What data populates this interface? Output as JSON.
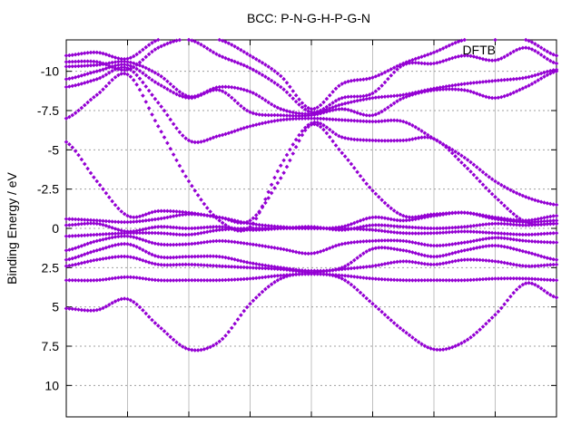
{
  "chart_data": {
    "type": "scatter",
    "title": "BCC: P-N-G-H-P-G-N",
    "ylabel": "Binding Energy / eV",
    "xlabel": "",
    "ylim": [
      12,
      -12
    ],
    "xlim": [
      0,
      8
    ],
    "y_ticks": [
      -10,
      -7.5,
      -5,
      -2.5,
      0,
      2.5,
      5,
      7.5,
      10
    ],
    "y_tick_labels": [
      "-10",
      "-7.5",
      "-5",
      "-2.5",
      "0",
      "2.5",
      "5",
      "7.5",
      "10"
    ],
    "x_gridlines": [
      1,
      2,
      3,
      4,
      5,
      6,
      7
    ],
    "grid": true,
    "legend": "top-right",
    "series": [
      {
        "name": "DFTB",
        "color": "#9400d3",
        "bands": [
          {
            "x": [
              0,
              0.5,
              1,
              1.5,
              2,
              2.5,
              3,
              3.5,
              4,
              4.5,
              5,
              5.5,
              6,
              6.5,
              7,
              7.5,
              8
            ],
            "y": [
              5.1,
              5.2,
              4.5,
              6.2,
              7.7,
              7.2,
              4.8,
              3.2,
              2.9,
              3.2,
              4.8,
              6.5,
              7.7,
              7.2,
              5.5,
              3.5,
              4.4
            ]
          },
          {
            "x": [
              0,
              0.5,
              1,
              1.5,
              2,
              2.5,
              3,
              3.5,
              4,
              4.5,
              5,
              5.5,
              6,
              6.5,
              7,
              7.5,
              8
            ],
            "y": [
              3.3,
              3.3,
              3.1,
              3.3,
              3.3,
              3.3,
              3.2,
              3.0,
              2.9,
              3.0,
              3.2,
              3.3,
              3.3,
              3.3,
              3.2,
              3.2,
              3.3
            ]
          },
          {
            "x": [
              0,
              0.5,
              1,
              1.5,
              2,
              2.5,
              3,
              3.5,
              4,
              4.5,
              5,
              5.5,
              6,
              6.5,
              7,
              7.5,
              8
            ],
            "y": [
              2.4,
              2.0,
              1.8,
              2.3,
              2.3,
              2.4,
              2.5,
              2.6,
              2.8,
              2.6,
              2.4,
              2.1,
              2.3,
              2.0,
              2.1,
              2.4,
              2.3
            ]
          },
          {
            "x": [
              0,
              0.5,
              1,
              1.5,
              2,
              2.5,
              3,
              3.5,
              4,
              4.5,
              5,
              5.5,
              6,
              6.5,
              7,
              7.5,
              8
            ],
            "y": [
              2.0,
              1.4,
              1.0,
              1.8,
              1.8,
              1.8,
              2.2,
              2.5,
              2.7,
              2.5,
              1.3,
              1.4,
              1.8,
              1.4,
              1.1,
              1.5,
              2.0
            ]
          },
          {
            "x": [
              0,
              0.5,
              1,
              1.5,
              2,
              2.5,
              3,
              3.5,
              4,
              4.5,
              5,
              5.5,
              6,
              6.5,
              7,
              7.5,
              8
            ],
            "y": [
              1.4,
              0.8,
              0.5,
              1.0,
              1.0,
              0.8,
              1.0,
              1.3,
              1.6,
              1.0,
              0.8,
              0.8,
              1.1,
              0.9,
              0.6,
              0.8,
              0.9
            ]
          },
          {
            "x": [
              0,
              0.5,
              1,
              1.5,
              2,
              2.5,
              3,
              3.5,
              4,
              4.5,
              5,
              5.5,
              6,
              6.5,
              7,
              7.5,
              8
            ],
            "y": [
              0.5,
              0.4,
              0.3,
              0.3,
              0.4,
              0.1,
              0.0,
              0.0,
              0.0,
              0.0,
              0.1,
              0.3,
              0.3,
              0.2,
              0.3,
              0.4,
              0.3
            ]
          },
          {
            "x": [
              0,
              0.5,
              1,
              1.5,
              2,
              2.5,
              3,
              3.5,
              4,
              4.5,
              5,
              5.5,
              6,
              6.5,
              7,
              7.5,
              8
            ],
            "y": [
              -0.2,
              -0.3,
              0.2,
              -0.1,
              0.0,
              -0.1,
              0.1,
              0.0,
              -0.1,
              0.1,
              -0.2,
              -0.1,
              0.0,
              -0.1,
              -0.3,
              -0.2,
              -0.3
            ]
          },
          {
            "x": [
              0,
              0.5,
              1,
              1.5,
              2,
              2.5,
              3,
              3.5,
              4,
              4.5,
              5,
              5.5,
              6,
              6.5,
              7,
              7.5,
              8
            ],
            "y": [
              -0.6,
              -0.5,
              -0.4,
              -0.6,
              -0.9,
              -0.7,
              -0.3,
              -0.1,
              0.0,
              -0.1,
              -0.7,
              -0.5,
              -0.8,
              -1.0,
              -0.6,
              -0.4,
              -0.5
            ]
          },
          {
            "x": [
              0,
              0.5,
              1,
              1.5,
              2,
              2.5,
              3,
              3.5,
              4,
              4.5,
              5,
              5.5,
              6,
              6.5,
              7,
              7.5,
              8
            ],
            "y": [
              -5.5,
              -3.0,
              -0.8,
              -1.1,
              -1.0,
              -0.7,
              -0.5,
              -3.2,
              -6.6,
              -4.8,
              -2.4,
              -0.8,
              -0.9,
              -1.0,
              -0.7,
              -0.5,
              -0.8
            ]
          },
          {
            "x": [
              0,
              0.5,
              1,
              1.5,
              2,
              2.5,
              3,
              3.5,
              4,
              4.5,
              5,
              5.5,
              6,
              6.5,
              7,
              7.5,
              8
            ],
            "y": [
              -7.0,
              -8.5,
              -9.8,
              -6.5,
              -3.0,
              -0.5,
              -0.1,
              -4.0,
              -6.7,
              -5.8,
              -5.6,
              -5.6,
              -5.7,
              -4.0,
              -2.0,
              -0.4,
              -0.3
            ]
          },
          {
            "x": [
              0,
              0.5,
              1,
              1.5,
              2,
              2.5,
              3,
              3.5,
              4,
              4.5,
              5,
              5.5,
              6,
              6.5,
              7,
              7.5,
              8
            ],
            "y": [
              -9.0,
              -9.5,
              -10.2,
              -8.0,
              -5.6,
              -5.9,
              -6.5,
              -6.9,
              -7.0,
              -6.9,
              -6.8,
              -6.8,
              -5.7,
              -4.5,
              -3.0,
              -2.0,
              -1.5
            ]
          },
          {
            "x": [
              0,
              0.5,
              1,
              1.5,
              2,
              2.5,
              3,
              3.5,
              4,
              4.5,
              5,
              5.5,
              6,
              6.5,
              7,
              7.5,
              8
            ],
            "y": [
              -9.5,
              -10.0,
              -10.4,
              -9.2,
              -8.3,
              -8.8,
              -7.4,
              -7.2,
              -7.2,
              -7.6,
              -7.2,
              -8.3,
              -8.8,
              -8.8,
              -8.3,
              -9.0,
              -10.0
            ]
          },
          {
            "x": [
              0,
              0.5,
              1,
              1.5,
              2,
              2.5,
              3,
              3.5,
              4,
              4.5,
              5,
              5.5,
              6,
              6.5,
              7,
              7.5,
              8
            ],
            "y": [
              -10.3,
              -10.4,
              -10.6,
              -9.8,
              -8.4,
              -9.0,
              -8.7,
              -7.6,
              -7.3,
              -7.9,
              -8.3,
              -8.5,
              -8.9,
              -9.2,
              -9.4,
              -9.6,
              -10.1
            ]
          },
          {
            "x": [
              0,
              0.5,
              1,
              1.5,
              2,
              2.5,
              3,
              3.5,
              4,
              4.5,
              5,
              5.5,
              6,
              6.5,
              7,
              7.5,
              8
            ],
            "y": [
              -10.6,
              -10.6,
              -10.1,
              -11.5,
              -12.0,
              -11.0,
              -10.2,
              -9.0,
              -7.4,
              -8.3,
              -8.6,
              -10.4,
              -10.5,
              -11.0,
              -10.7,
              -11.5,
              -10.5
            ]
          },
          {
            "x": [
              0,
              0.5,
              1,
              1.5,
              2,
              2.5,
              3,
              3.5,
              4,
              4.5,
              5,
              5.5,
              6,
              6.5,
              7,
              7.5,
              8
            ],
            "y": [
              -11.0,
              -11.2,
              -10.8,
              -12.0,
              -12.0,
              -12.0,
              -11.0,
              -9.7,
              -7.6,
              -9.2,
              -9.6,
              -10.5,
              -11.2,
              -12.0,
              -12.0,
              -12.0,
              -11.0
            ]
          }
        ]
      }
    ]
  }
}
